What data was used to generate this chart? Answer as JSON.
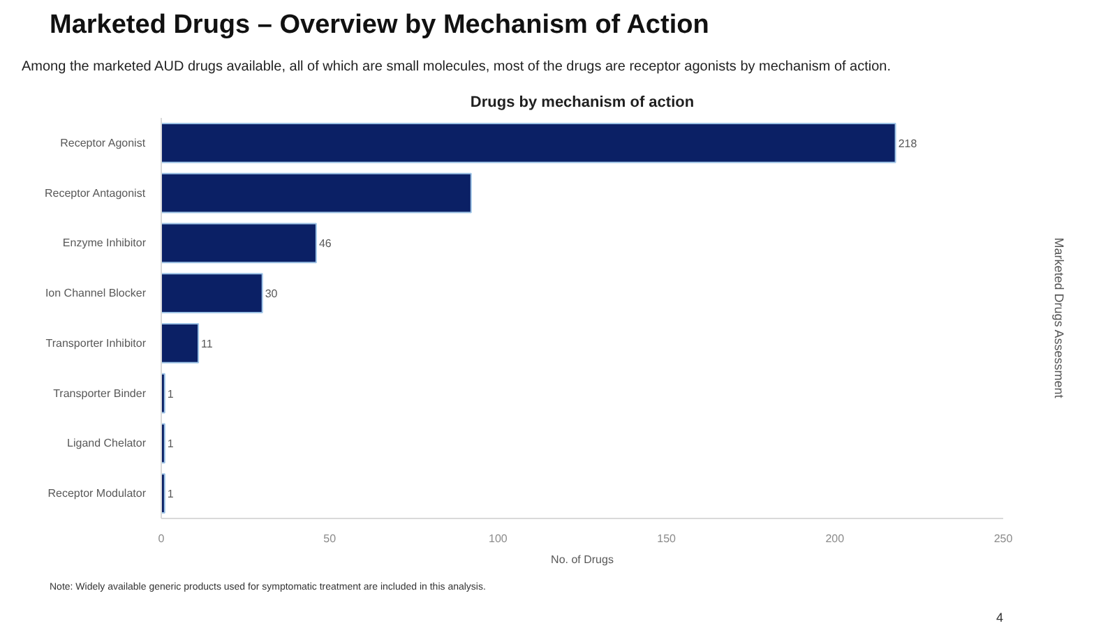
{
  "chart_data": {
    "type": "bar",
    "orientation": "horizontal",
    "title": "Marketed Drugs – Overview by Mechanism of Action",
    "subtitle": "Among the marketed AUD drugs available, all of which are small molecules, most of the drugs are receptor agonists by mechanism of action.",
    "categories": [
      "Receptor Agonist",
      "Receptor Antagonist",
      "Enzyme Inhibitor",
      "Ion Channel Blocker",
      "Transporter Inhibitor",
      "Transporter Binder",
      "Ligand Chelator",
      "Receptor Modulator"
    ],
    "values": [
      218,
      92,
      46,
      30,
      11,
      1,
      1,
      1
    ],
    "value_labels": [
      "218",
      null,
      "46",
      "30",
      "11",
      "1",
      "1",
      "1"
    ],
    "color": "#0b2065",
    "xlabel": "No. of Drugs",
    "xlim": [
      0,
      250
    ],
    "xticks": [
      0,
      50,
      100,
      150,
      200,
      250
    ],
    "grid": false,
    "annotations": [
      "Drugs by mechanism of action",
      "Note: Widely available generic products used for symptomatic treatment are included in this analysis.",
      "Marketed Drugs Assessment",
      "4"
    ]
  }
}
